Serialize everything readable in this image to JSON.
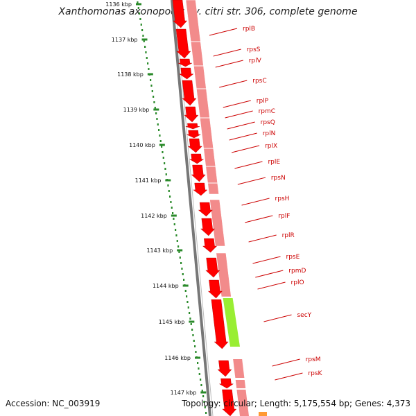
{
  "title": "Xanthomonas axonopodis pv. citri str. 306, complete genome",
  "footer": {
    "accession": "Accession: NC_003919",
    "topology": "Topology: circular; Length: 5,175,554 bp; Genes: 4,373"
  },
  "colors": {
    "gene_arrow": "#ff0000",
    "gene_band": "#f28b8b",
    "secY_band": "#99ee33",
    "kbp_dots": "#2a8a2a",
    "backbone": "#777777",
    "label": "#cc0000"
  },
  "kbp_ticks": [
    "1136 kbp",
    "1137 kbp",
    "1138 kbp",
    "1139 kbp",
    "1140 kbp",
    "1141 kbp",
    "1142 kbp",
    "1143 kbp",
    "1144 kbp",
    "1145 kbp",
    "1146 kbp",
    "1147 kbp"
  ],
  "genes": [
    "rplB",
    "rpsS",
    "rplV",
    "rpsC",
    "rplP",
    "rpmC",
    "rpsQ",
    "rplN",
    "rplX",
    "rplE",
    "rpsN",
    "rpsH",
    "rplF",
    "rplR",
    "rpsE",
    "rpmD",
    "rplO",
    "secY",
    "rpsM",
    "rpsK"
  ]
}
